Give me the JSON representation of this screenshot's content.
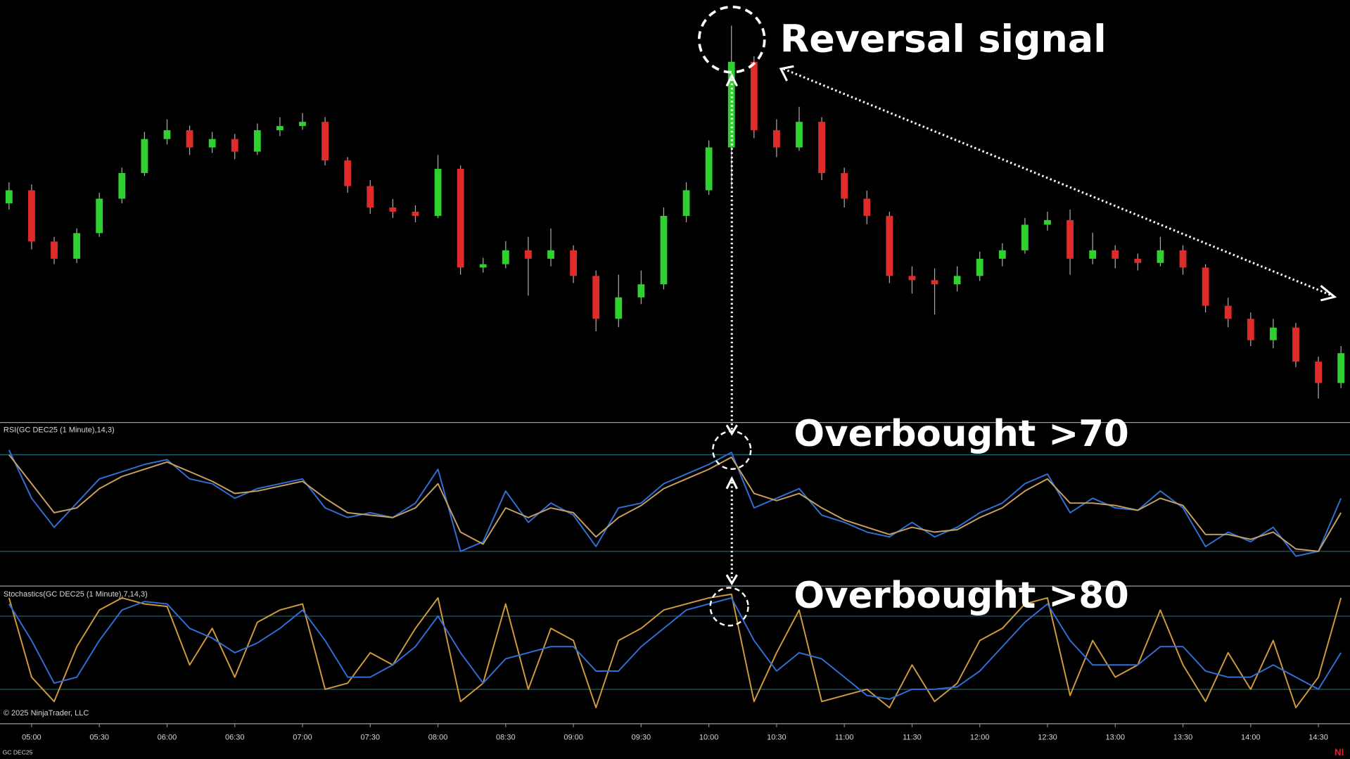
{
  "time_axis": {
    "x": [
      290,
      300,
      310,
      320,
      330,
      340,
      350,
      360,
      370,
      380,
      390,
      400,
      410,
      420,
      430,
      440,
      450,
      460,
      470,
      480,
      490,
      500,
      510,
      520,
      530,
      540,
      550,
      560,
      570,
      580,
      590,
      600,
      610,
      620,
      630,
      640,
      650,
      660,
      670,
      680,
      690,
      700,
      710,
      720,
      730,
      740,
      750,
      760,
      770,
      780,
      790,
      800,
      810,
      820,
      830,
      840,
      850,
      860,
      870,
      880
    ],
    "xlim": [
      286,
      884
    ],
    "xticks": [
      {
        "value": 300,
        "label": "05:00"
      },
      {
        "value": 330,
        "label": "05:30"
      },
      {
        "value": 360,
        "label": "06:00"
      },
      {
        "value": 390,
        "label": "06:30"
      },
      {
        "value": 420,
        "label": "07:00"
      },
      {
        "value": 450,
        "label": "07:30"
      },
      {
        "value": 480,
        "label": "08:00"
      },
      {
        "value": 510,
        "label": "08:30"
      },
      {
        "value": 540,
        "label": "09:00"
      },
      {
        "value": 570,
        "label": "09:30"
      },
      {
        "value": 600,
        "label": "10:00"
      },
      {
        "value": 630,
        "label": "10:30"
      },
      {
        "value": 660,
        "label": "11:00"
      },
      {
        "value": 690,
        "label": "11:30"
      },
      {
        "value": 720,
        "label": "12:00"
      },
      {
        "value": 750,
        "label": "12:30"
      },
      {
        "value": 780,
        "label": "13:00"
      },
      {
        "value": 810,
        "label": "13:30"
      },
      {
        "value": 840,
        "label": "14:00"
      },
      {
        "value": 870,
        "label": "14:30"
      }
    ]
  },
  "chart_data": [
    {
      "type": "candlestick",
      "ylim": [
        0,
        100
      ],
      "up_color": "#2fd12f",
      "down_color": "#e02b2b",
      "open": [
        52.0,
        55.1,
        42.9,
        38.8,
        44.9,
        53.1,
        59.2,
        67.3,
        69.4,
        65.3,
        67.3,
        64.3,
        69.4,
        70.4,
        71.4,
        62.2,
        56.1,
        51.0,
        50.0,
        49.0,
        60.2,
        36.7,
        37.5,
        40.8,
        38.8,
        40.8,
        34.7,
        24.5,
        29.6,
        32.7,
        49.0,
        55.1,
        65.3,
        85.7,
        69.4,
        65.3,
        71.4,
        59.2,
        53.1,
        49.0,
        34.7,
        33.7,
        32.7,
        34.7,
        38.8,
        40.8,
        46.9,
        48.0,
        38.8,
        40.8,
        38.8,
        37.8,
        40.8,
        36.7,
        27.6,
        24.5,
        19.4,
        22.4,
        14.3,
        9.2
      ],
      "high": [
        57.0,
        56.5,
        44.0,
        46.0,
        54.5,
        60.5,
        69.0,
        72.0,
        70.5,
        69.0,
        68.5,
        71.0,
        72.5,
        73.5,
        72.5,
        63.0,
        57.5,
        53.0,
        51.5,
        63.5,
        61.0,
        39.0,
        43.0,
        44.0,
        46.0,
        42.0,
        36.0,
        35.0,
        36.0,
        51.0,
        57.0,
        67.0,
        94.3,
        87.0,
        72.0,
        75.0,
        72.5,
        60.5,
        55.0,
        50.0,
        37.0,
        36.5,
        37.0,
        40.5,
        42.5,
        48.5,
        50.0,
        50.5,
        45.0,
        42.0,
        40.0,
        44.0,
        42.0,
        37.5,
        29.5,
        26.0,
        24.5,
        23.5,
        15.5,
        18.0
      ],
      "low": [
        50.5,
        41.0,
        37.5,
        37.8,
        44.0,
        52.0,
        58.5,
        66.0,
        63.5,
        64.0,
        62.5,
        63.5,
        68.0,
        69.5,
        61.0,
        54.5,
        49.5,
        48.5,
        47.5,
        48.5,
        35.0,
        35.5,
        36.5,
        30.0,
        37.0,
        33.0,
        21.5,
        22.5,
        28.0,
        31.5,
        47.5,
        54.0,
        56.0,
        67.5,
        63.0,
        64.5,
        57.5,
        51.0,
        47.0,
        33.0,
        30.5,
        25.5,
        31.0,
        33.5,
        37.0,
        40.0,
        45.5,
        35.0,
        37.5,
        36.5,
        36.0,
        37.0,
        35.0,
        26.0,
        22.5,
        18.0,
        17.5,
        13.0,
        5.5,
        8.0
      ],
      "close": [
        55.1,
        42.9,
        38.8,
        44.9,
        53.1,
        59.2,
        67.3,
        69.4,
        65.3,
        67.3,
        64.3,
        69.4,
        70.4,
        71.4,
        62.2,
        56.1,
        51.0,
        50.0,
        49.0,
        60.2,
        36.7,
        37.5,
        40.8,
        38.8,
        40.8,
        34.7,
        24.5,
        29.6,
        32.7,
        49.0,
        55.1,
        65.3,
        85.7,
        69.4,
        65.3,
        71.4,
        59.2,
        53.1,
        49.0,
        34.7,
        33.7,
        32.7,
        34.7,
        38.8,
        40.8,
        46.9,
        48.0,
        38.8,
        40.8,
        38.8,
        37.8,
        40.8,
        36.7,
        27.6,
        24.5,
        19.4,
        22.4,
        14.3,
        9.2,
        16.3
      ],
      "annotation": "Reversal signal"
    },
    {
      "type": "line",
      "title": "RSI(GC DEC25 (1 Minute),14,3)",
      "ylim": [
        16,
        83
      ],
      "levels": [
        70,
        30
      ],
      "level_color": "#1d6b7a",
      "series": [
        {
          "color": "#2f6fd6",
          "values": [
            72,
            52,
            40,
            50,
            60,
            63,
            66,
            68,
            60,
            58,
            52,
            56,
            58,
            60,
            48,
            44,
            46,
            44,
            50,
            64,
            30,
            34,
            55,
            42,
            50,
            45,
            32,
            48,
            50,
            58,
            62,
            66,
            71,
            48,
            52,
            56,
            45,
            42,
            38,
            36,
            42,
            36,
            40,
            46,
            50,
            58,
            62,
            46,
            52,
            48,
            47,
            55,
            48,
            32,
            38,
            34,
            40,
            28,
            30,
            52
          ]
        },
        {
          "color": "#c8a060",
          "values": [
            70,
            58,
            46,
            48,
            56,
            61,
            64,
            67,
            63,
            59,
            54,
            55,
            57,
            59,
            52,
            46,
            45,
            44,
            48,
            58,
            38,
            33,
            48,
            44,
            48,
            46,
            36,
            44,
            49,
            56,
            60,
            64,
            69,
            54,
            51,
            54,
            48,
            43,
            40,
            37,
            40,
            38,
            39,
            44,
            48,
            55,
            60,
            50,
            50,
            49,
            47,
            52,
            49,
            37,
            37,
            35,
            38,
            31,
            30,
            46
          ]
        }
      ],
      "annotation": "Overbought >70"
    },
    {
      "type": "line",
      "title": "Stochastics(GC DEC25 (1 Minute),7,14,3)",
      "ylim": [
        -7.5,
        104
      ],
      "levels": [
        80,
        20
      ],
      "level_color": "#1d6b7a",
      "series": [
        {
          "color": "#d19a3a",
          "values": [
            95,
            30,
            10,
            55,
            85,
            95,
            90,
            88,
            40,
            70,
            30,
            75,
            85,
            90,
            20,
            25,
            50,
            40,
            70,
            95,
            10,
            25,
            90,
            20,
            70,
            60,
            5,
            60,
            70,
            85,
            90,
            95,
            98,
            10,
            50,
            85,
            10,
            15,
            20,
            5,
            40,
            10,
            25,
            60,
            70,
            90,
            95,
            15,
            60,
            30,
            40,
            85,
            40,
            10,
            50,
            20,
            60,
            5,
            30,
            95
          ]
        },
        {
          "color": "#2f6fd6",
          "values": [
            90,
            60,
            25,
            30,
            60,
            85,
            92,
            90,
            70,
            62,
            50,
            58,
            70,
            85,
            60,
            30,
            30,
            40,
            55,
            80,
            50,
            25,
            45,
            50,
            55,
            55,
            35,
            35,
            55,
            70,
            85,
            90,
            95,
            60,
            35,
            50,
            45,
            30,
            15,
            12,
            20,
            20,
            22,
            35,
            55,
            75,
            90,
            60,
            40,
            40,
            40,
            55,
            55,
            35,
            30,
            30,
            40,
            30,
            20,
            50
          ]
        }
      ],
      "annotation": "Overbought >80"
    }
  ],
  "footer": {
    "copyright": "© 2025 NinjaTrader, LLC",
    "symbol": "GC DEC25",
    "brand": "NI"
  }
}
